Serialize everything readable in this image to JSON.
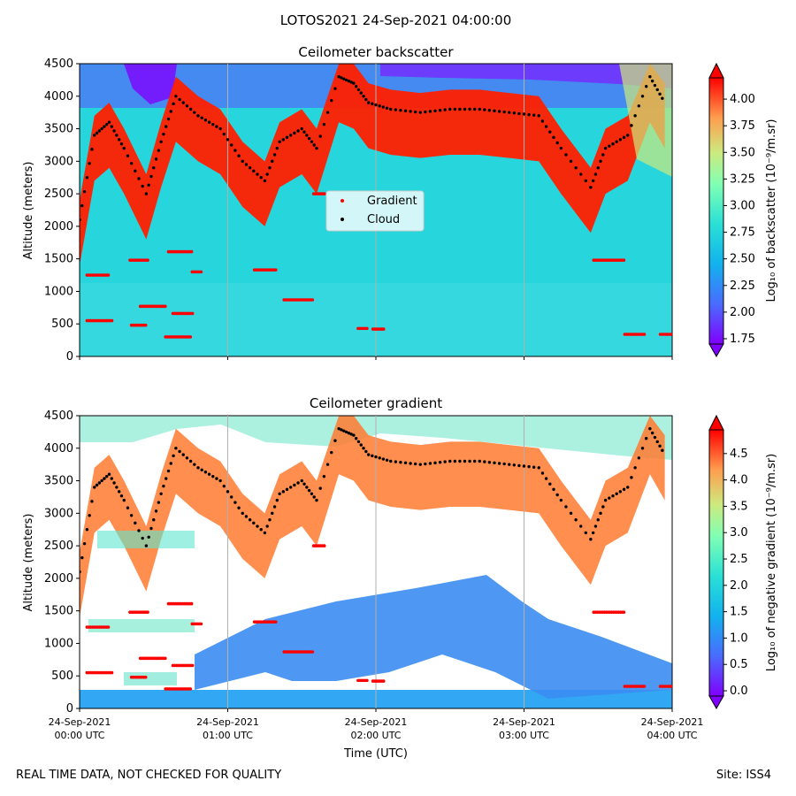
{
  "figure": {
    "title": "LOTOS2021 24-Sep-2021 04:00:00",
    "footer_left": "REAL TIME DATA, NOT CHECKED FOR QUALITY",
    "footer_right": "Site: ISS4"
  },
  "legend": {
    "gradient": "Gradient",
    "cloud": "Cloud",
    "placement": "center (top panel)"
  },
  "x_axis": {
    "label": "Time (UTC)",
    "ticks": [
      {
        "date": "24-Sep-2021",
        "time": "00:00 UTC"
      },
      {
        "date": "24-Sep-2021",
        "time": "01:00 UTC"
      },
      {
        "date": "24-Sep-2021",
        "time": "02:00 UTC"
      },
      {
        "date": "24-Sep-2021",
        "time": "03:00 UTC"
      },
      {
        "date": "24-Sep-2021",
        "time": "04:00 UTC"
      }
    ]
  },
  "colors": {
    "gradient_points": "#ff0000",
    "cloud_points": "#000000"
  },
  "chart_data": [
    {
      "type": "heatmap",
      "title": "Ceilometer backscatter",
      "xlabel": "",
      "ylabel": "Altitude (meters)",
      "xlim_hours": [
        0,
        4
      ],
      "ylim": [
        0,
        4500
      ],
      "yticks": [
        "0",
        "500",
        "1000",
        "1500",
        "2000",
        "2500",
        "3000",
        "3500",
        "4000",
        "4500"
      ],
      "colorbar": {
        "label": "Log₁₀ of backscatter (10⁻⁹/m.sr)",
        "range": [
          1.7,
          4.2
        ],
        "ticks": [
          "1.75",
          "2.00",
          "2.25",
          "2.50",
          "2.75",
          "3.00",
          "3.25",
          "3.50",
          "3.75",
          "4.00"
        ],
        "colormap": "rainbow",
        "extend": "both"
      },
      "grid": "vertical lines at hour ticks",
      "cloud_top_layer_approx": {
        "x_hours": [
          0.0,
          0.1,
          0.2,
          0.3,
          0.45,
          0.55,
          0.65,
          0.8,
          0.95,
          1.1,
          1.25,
          1.35,
          1.5,
          1.6,
          1.75,
          1.85,
          1.95,
          2.1,
          2.3,
          2.5,
          2.7,
          2.9,
          3.1,
          3.25,
          3.45,
          3.55,
          3.7,
          3.85,
          3.95
        ],
        "altitude_m": [
          2100,
          3400,
          3600,
          3200,
          2500,
          3300,
          4000,
          3700,
          3500,
          3000,
          2700,
          3300,
          3500,
          3200,
          4300,
          4200,
          3900,
          3800,
          3750,
          3800,
          3800,
          3750,
          3700,
          3200,
          2600,
          3200,
          3400,
          4300,
          3900
        ]
      },
      "gradient_segments_m": [
        {
          "x_hours": [
            0.05,
            0.2
          ],
          "altitude_m": 1250
        },
        {
          "x_hours": [
            0.05,
            0.23
          ],
          "altitude_m": 550
        },
        {
          "x_hours": [
            0.35,
            0.45
          ],
          "altitude_m": 480
        },
        {
          "x_hours": [
            0.34,
            0.47
          ],
          "altitude_m": 1480
        },
        {
          "x_hours": [
            0.41,
            0.58
          ],
          "altitude_m": 770
        },
        {
          "x_hours": [
            0.58,
            0.75
          ],
          "altitude_m": 300
        },
        {
          "x_hours": [
            0.6,
            0.76
          ],
          "altitude_m": 1610
        },
        {
          "x_hours": [
            0.63,
            0.77
          ],
          "altitude_m": 660
        },
        {
          "x_hours": [
            0.76,
            0.83
          ],
          "altitude_m": 1300
        },
        {
          "x_hours": [
            1.18,
            1.33
          ],
          "altitude_m": 1330
        },
        {
          "x_hours": [
            1.38,
            1.58
          ],
          "altitude_m": 870
        },
        {
          "x_hours": [
            1.58,
            1.66
          ],
          "altitude_m": 2500
        },
        {
          "x_hours": [
            1.88,
            1.94
          ],
          "altitude_m": 430
        },
        {
          "x_hours": [
            1.98,
            2.06
          ],
          "altitude_m": 420
        },
        {
          "x_hours": [
            3.47,
            3.68
          ],
          "altitude_m": 1480
        },
        {
          "x_hours": [
            3.68,
            3.82
          ],
          "altitude_m": 340
        },
        {
          "x_hours": [
            3.92,
            4.0
          ],
          "altitude_m": 340
        }
      ]
    },
    {
      "type": "heatmap",
      "title": "Ceilometer gradient",
      "xlabel": "Time (UTC)",
      "ylabel": "Altitude (meters)",
      "xlim_hours": [
        0,
        4
      ],
      "ylim": [
        0,
        4500
      ],
      "yticks": [
        "0",
        "500",
        "1000",
        "1500",
        "2000",
        "2500",
        "3000",
        "3500",
        "4000",
        "4500"
      ],
      "colorbar": {
        "label": "Log₁₀ of negative gradient (10⁻⁹/m.sr)",
        "range": [
          -0.1,
          4.95
        ],
        "ticks": [
          "0.0",
          "0.5",
          "1.0",
          "1.5",
          "2.0",
          "2.5",
          "3.0",
          "3.5",
          "4.0",
          "4.5"
        ],
        "colormap": "rainbow",
        "extend": "both"
      },
      "grid": "vertical lines at hour ticks"
    }
  ]
}
